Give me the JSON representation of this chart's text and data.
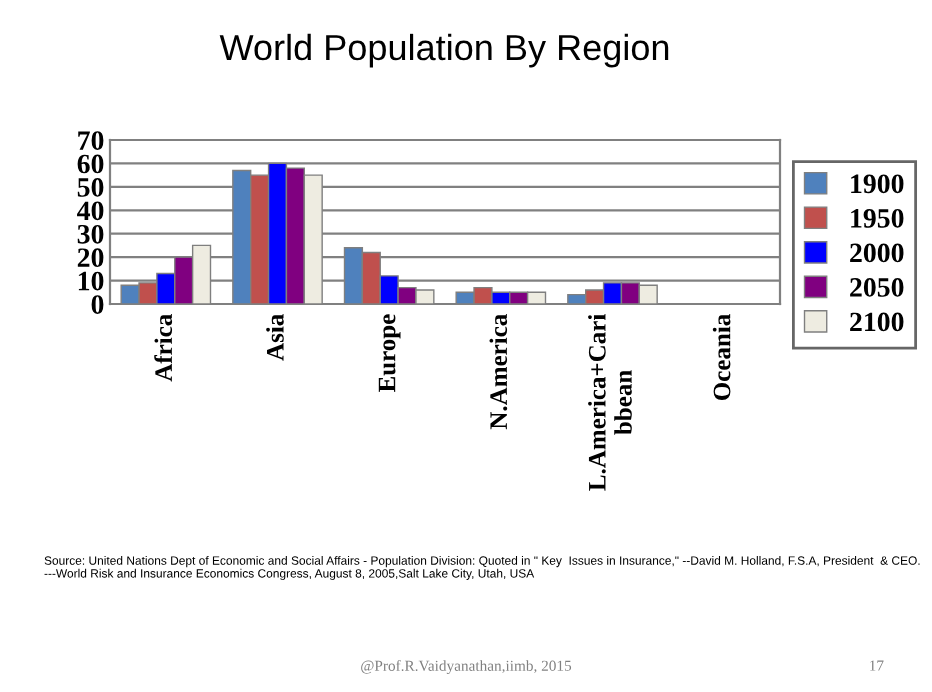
{
  "chart_data": {
    "type": "bar",
    "title": "World Population By Region",
    "categories": [
      "Africa",
      "Asia",
      "Europe",
      "N.America",
      "L.America+Cari\nbbean",
      "Oceania"
    ],
    "series": [
      {
        "name": "1900",
        "color": "#4f81bd",
        "values": [
          8,
          57,
          24,
          5,
          4,
          0
        ]
      },
      {
        "name": "1950",
        "color": "#c0504d",
        "values": [
          9,
          55,
          22,
          7,
          6,
          0
        ]
      },
      {
        "name": "2000",
        "color": "#0000ff",
        "values": [
          13,
          60,
          12,
          5,
          9,
          0
        ]
      },
      {
        "name": "2050",
        "color": "#800080",
        "values": [
          20,
          58,
          7,
          5,
          9,
          0
        ]
      },
      {
        "name": "2100",
        "color": "#eeece1",
        "values": [
          25,
          55,
          6,
          5,
          8,
          0
        ]
      }
    ],
    "ylim": [
      0,
      70
    ],
    "yticks": [
      0,
      10,
      20,
      30,
      40,
      50,
      60,
      70
    ],
    "grid": "y",
    "legend": "right",
    "annotations": [
      "Source: United Nations Dept of Economic and Social Affairs - Population Division: Quoted in \" Key  Issues in Insurance,\" --David M. Holland, F.S.A, President  & CEO. ---World Risk and Insurance Economics Congress, August 8, 2005,Salt Lake City, Utah, USA",
      "@Prof.R.Vaidyanathan,iimb, 2015",
      "17"
    ]
  }
}
